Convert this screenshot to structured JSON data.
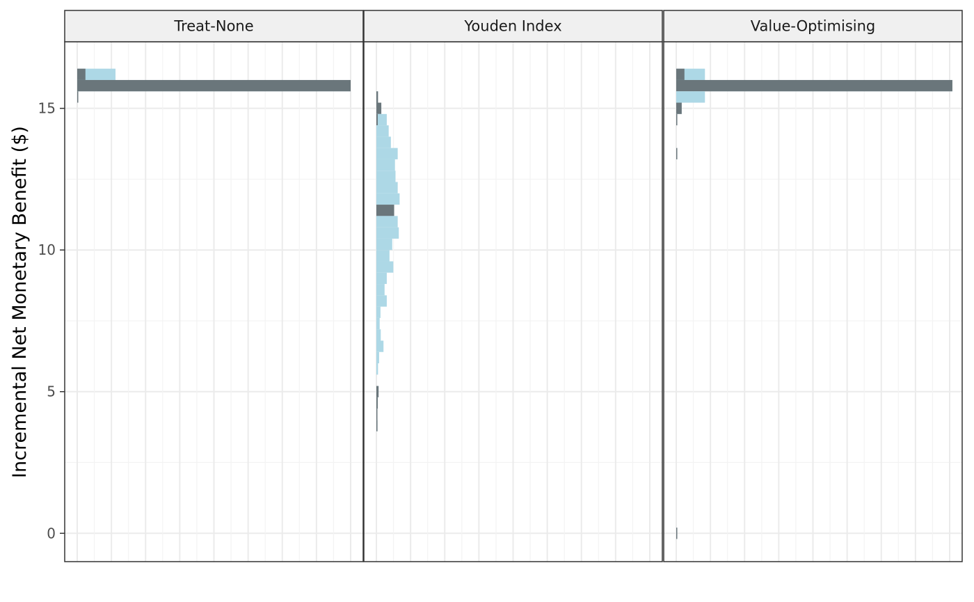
{
  "chart_data": {
    "type": "bar",
    "orientation": "horizontal",
    "title": "",
    "xlabel": "",
    "ylabel": "Incremental Net Monetary Benefit ($)",
    "ylim": [
      -1,
      17.35
    ],
    "y_ticks": [
      0,
      5,
      10,
      15
    ],
    "x_ticks_labeled": false,
    "grid": true,
    "bin_width": 0.4,
    "colors": {
      "hist_fill": "#add8e6",
      "highlight_fill": "#4d4d4d",
      "highlight_opacity": 0.7,
      "grid_major": "#ebebeb",
      "grid_minor": "#f3f3f3",
      "panel_border": "#333333",
      "strip_bg": "#f0f0f0",
      "strip_text": "#1a1a1a"
    },
    "panels": [
      {
        "name": "Treat-None",
        "xlim": [
          0,
          100
        ],
        "bins": [
          {
            "y": 16.2,
            "count": 14,
            "highlight": 3
          },
          {
            "y": 15.8,
            "count": 100,
            "highlight": 100
          },
          {
            "y": 15.4,
            "count": 0.3,
            "highlight": 0.3
          }
        ]
      },
      {
        "name": "Youden Index",
        "xlim": [
          0,
          100
        ],
        "bins": [
          {
            "y": 15.4,
            "count": 0.6,
            "highlight": 0.6
          },
          {
            "y": 15.0,
            "count": 1.8,
            "highlight": 1.8
          },
          {
            "y": 14.6,
            "count": 3.8,
            "highlight": 0.5
          },
          {
            "y": 14.2,
            "count": 4.5,
            "highlight": 0
          },
          {
            "y": 13.8,
            "count": 5.3,
            "highlight": 0
          },
          {
            "y": 13.4,
            "count": 7.8,
            "highlight": 0
          },
          {
            "y": 13.0,
            "count": 6.8,
            "highlight": 0
          },
          {
            "y": 12.6,
            "count": 7.0,
            "highlight": 0
          },
          {
            "y": 12.2,
            "count": 7.8,
            "highlight": 0
          },
          {
            "y": 11.8,
            "count": 8.5,
            "highlight": 0
          },
          {
            "y": 11.4,
            "count": 6.5,
            "highlight": 6.5
          },
          {
            "y": 11.0,
            "count": 7.8,
            "highlight": 0
          },
          {
            "y": 10.6,
            "count": 8.2,
            "highlight": 0
          },
          {
            "y": 10.2,
            "count": 5.8,
            "highlight": 0
          },
          {
            "y": 9.8,
            "count": 4.8,
            "highlight": 0
          },
          {
            "y": 9.4,
            "count": 6.2,
            "highlight": 0
          },
          {
            "y": 9.0,
            "count": 3.8,
            "highlight": 0
          },
          {
            "y": 8.6,
            "count": 3.0,
            "highlight": 0
          },
          {
            "y": 8.2,
            "count": 3.8,
            "highlight": 0
          },
          {
            "y": 7.8,
            "count": 1.5,
            "highlight": 0
          },
          {
            "y": 7.4,
            "count": 1.2,
            "highlight": 0
          },
          {
            "y": 7.0,
            "count": 1.6,
            "highlight": 0
          },
          {
            "y": 6.6,
            "count": 2.6,
            "highlight": 0
          },
          {
            "y": 6.2,
            "count": 1.0,
            "highlight": 0
          },
          {
            "y": 5.8,
            "count": 0.6,
            "highlight": 0
          },
          {
            "y": 5.0,
            "count": 0.8,
            "highlight": 0.8
          },
          {
            "y": 4.6,
            "count": 0.5,
            "highlight": 0.5
          },
          {
            "y": 4.2,
            "count": 0.3,
            "highlight": 0.3
          },
          {
            "y": 3.8,
            "count": 0.4,
            "highlight": 0.4
          }
        ]
      },
      {
        "name": "Value-Optimising",
        "xlim": [
          0,
          100
        ],
        "bins": [
          {
            "y": 16.2,
            "count": 10.5,
            "highlight": 3
          },
          {
            "y": 15.8,
            "count": 101,
            "highlight": 101
          },
          {
            "y": 15.4,
            "count": 10.5,
            "highlight": 0
          },
          {
            "y": 15.0,
            "count": 2.0,
            "highlight": 2.0
          },
          {
            "y": 14.6,
            "count": 0.3,
            "highlight": 0.3
          },
          {
            "y": 13.4,
            "count": 0.3,
            "highlight": 0.3
          },
          {
            "y": 0.0,
            "count": 0.3,
            "highlight": 0.3
          }
        ]
      }
    ]
  }
}
